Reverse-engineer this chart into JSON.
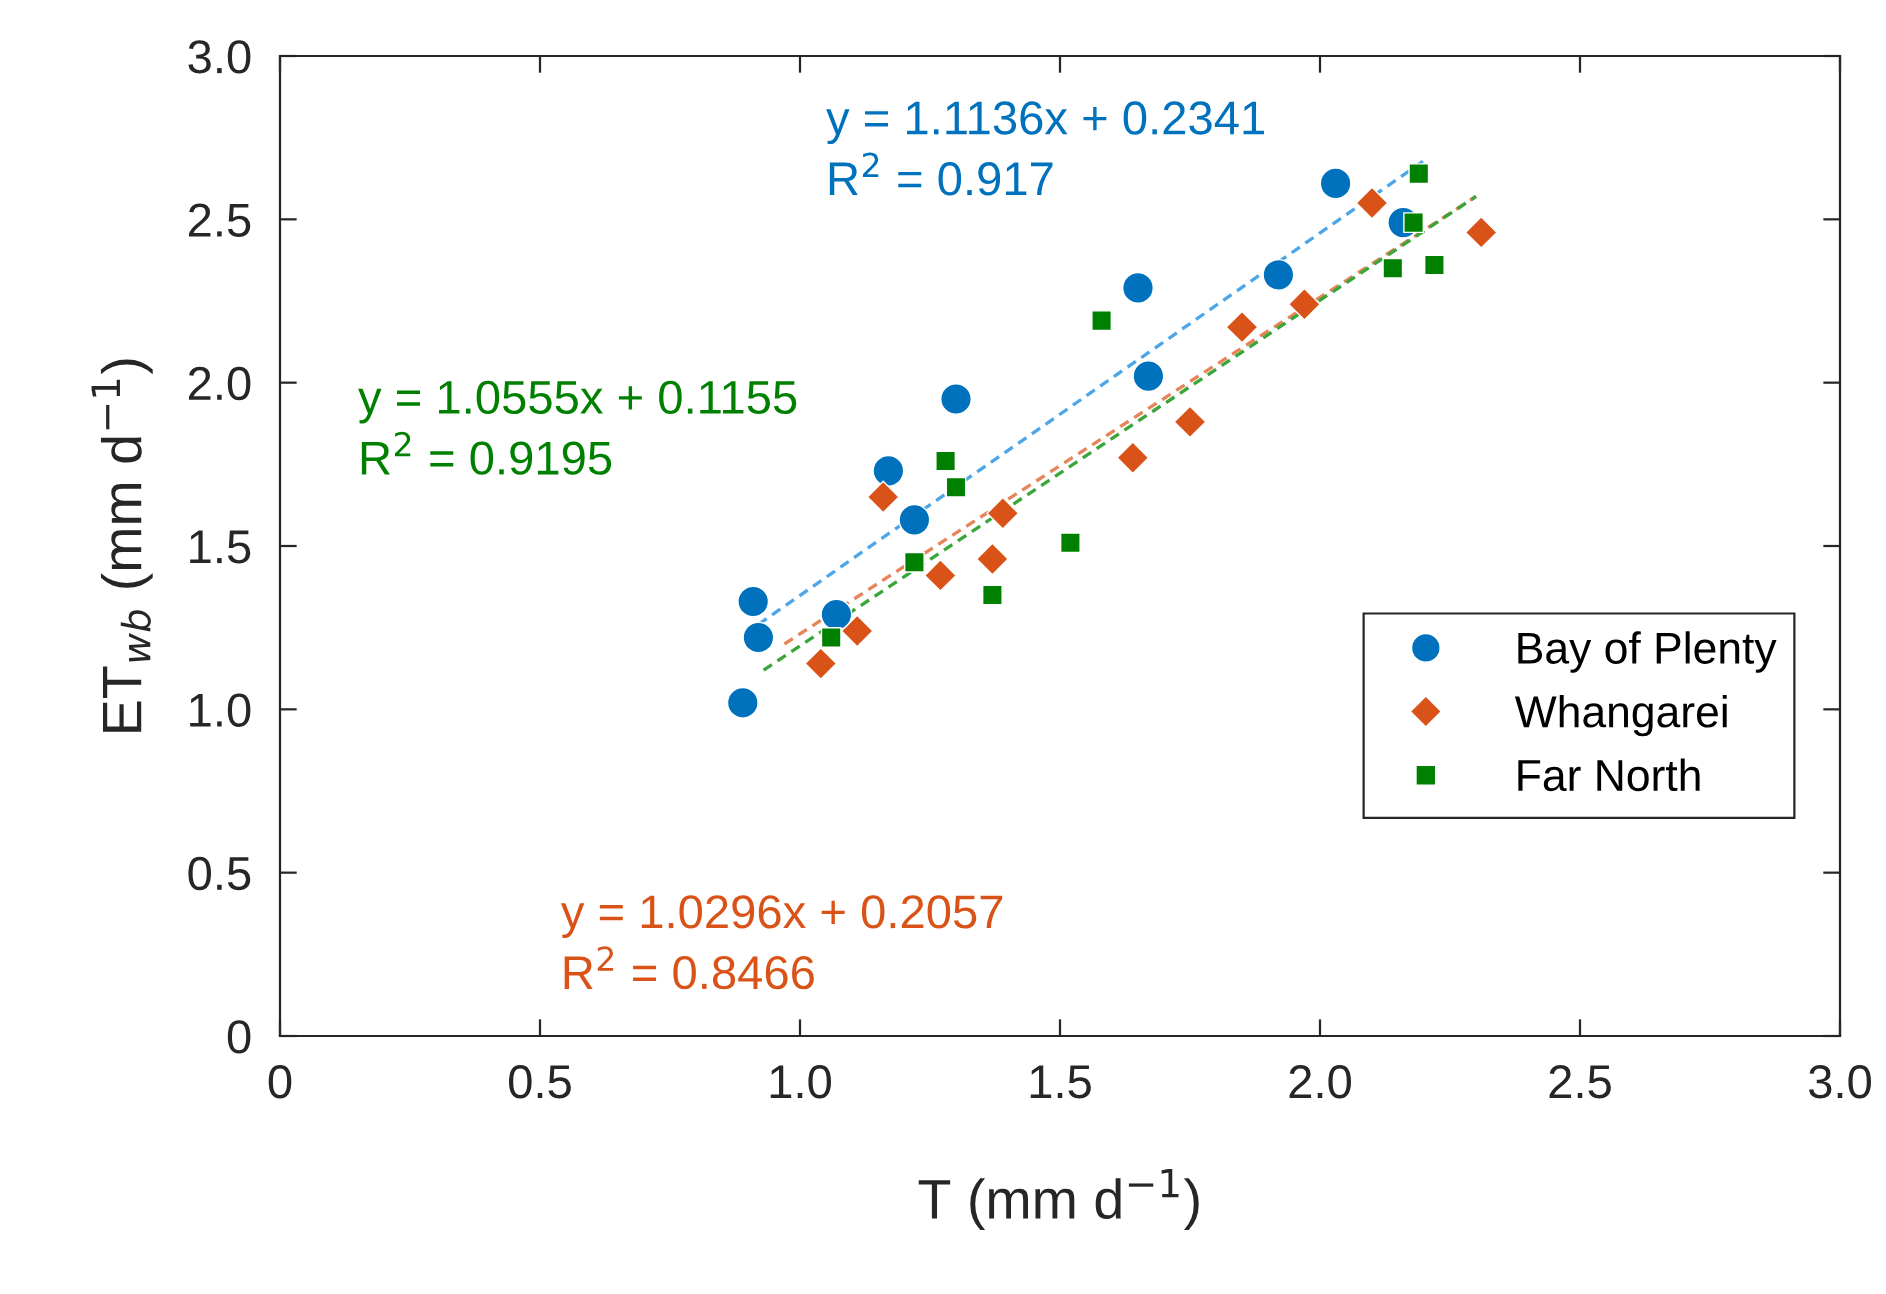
{
  "chart_data": {
    "type": "scatter",
    "xlabel": "T (mm d$^{−1}$)",
    "ylabel": "ET$_{wb}$ (mm d$^{−1}$)",
    "xlim": [
      0,
      3.0
    ],
    "ylim": [
      0,
      3.0
    ],
    "xticks": [
      {
        "value": 0,
        "label": "0"
      },
      0.5,
      {
        "value": 1,
        "label": "1.0"
      },
      1.5,
      {
        "value": 2,
        "label": "2.0"
      },
      2.5,
      {
        "value": 3,
        "label": "3.0"
      }
    ],
    "yticks": [
      {
        "value": 0,
        "label": "0"
      },
      0.5,
      {
        "value": 1,
        "label": "1.0"
      },
      1.5,
      {
        "value": 2,
        "label": "2.0"
      },
      2.5,
      {
        "value": 3,
        "label": "3.0"
      }
    ],
    "grid": false,
    "legend": "bottom right",
    "series": [
      {
        "name": "Bay of Plenty",
        "color": "#0072bd",
        "marker": "circle",
        "x": [
          0.89,
          0.91,
          0.92,
          1.07,
          1.17,
          1.22,
          1.3,
          1.65,
          1.67,
          1.92,
          2.03,
          2.16
        ],
        "values": [
          1.02,
          1.33,
          1.22,
          1.29,
          1.73,
          1.58,
          1.95,
          2.29,
          2.02,
          2.33,
          2.61,
          2.49
        ]
      },
      {
        "name": "Whangarei",
        "color": "#d95319",
        "marker": "diamond",
        "x": [
          1.04,
          1.11,
          1.16,
          1.27,
          1.37,
          1.39,
          1.64,
          1.75,
          1.85,
          1.97,
          2.1,
          2.31
        ],
        "values": [
          1.14,
          1.24,
          1.65,
          1.41,
          1.46,
          1.6,
          1.77,
          1.88,
          2.17,
          2.24,
          2.55,
          2.46
        ]
      },
      {
        "name": "Far North",
        "color": "#008000",
        "marker": "square",
        "x": [
          1.06,
          1.22,
          1.28,
          1.3,
          1.37,
          1.52,
          1.58,
          2.14,
          2.18,
          2.19,
          2.22
        ],
        "values": [
          1.22,
          1.45,
          1.76,
          1.68,
          1.35,
          1.51,
          2.19,
          2.35,
          2.49,
          2.64,
          2.36
        ]
      },
      {
        "type": "line",
        "color": "#4da6e8",
        "line_style": "dashed",
        "marker": "none",
        "x": [
          0.92,
          2.2
        ],
        "values": [
          1.26,
          2.68
        ]
      },
      {
        "type": "line",
        "color": "#e8845a",
        "line_style": "dashed",
        "marker": "none",
        "x": [
          0.97,
          2.3
        ],
        "values": [
          1.2,
          2.57
        ]
      },
      {
        "type": "line",
        "color": "#3aa63a",
        "line_style": "dashed",
        "marker": "none",
        "x": [
          0.93,
          2.3
        ],
        "values": [
          1.12,
          2.57
        ]
      }
    ],
    "annotations": [
      "y = 1.1136x + 0.2341\nR$^{2}$ = 0.917",
      "y = 1.0296x + 0.2057\nR$^{2}$ = 0.8466",
      "y = 1.0555x + 0.1155\nR$^{2}$ = 0.9195"
    ]
  }
}
